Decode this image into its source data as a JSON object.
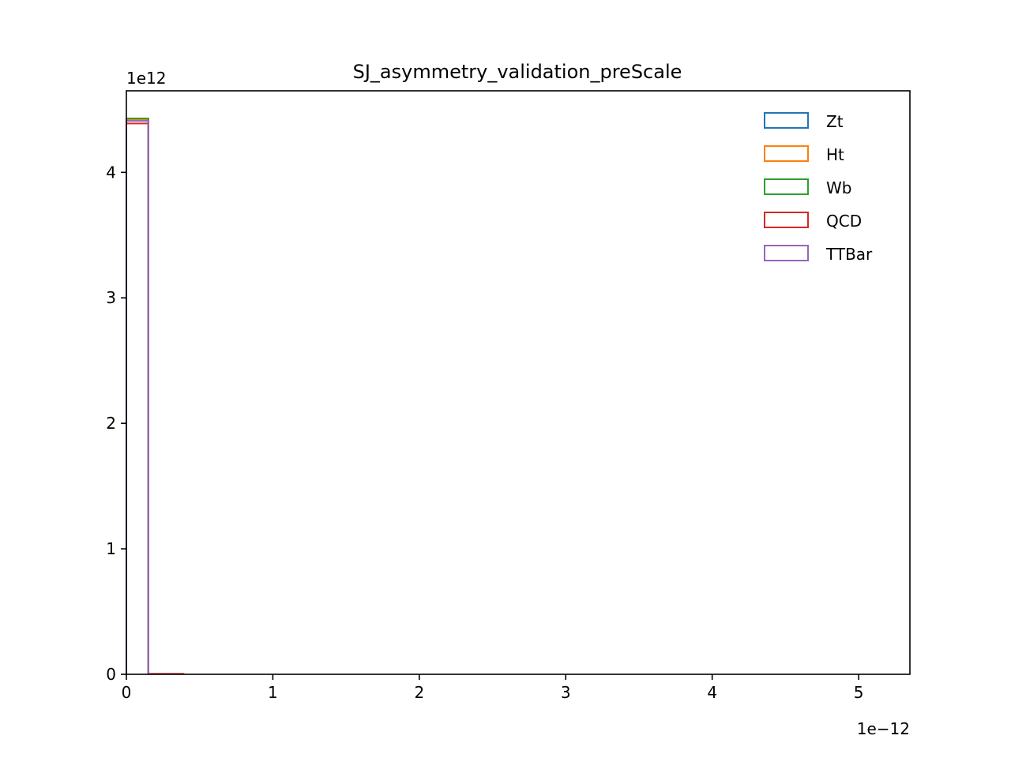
{
  "chart_data": {
    "type": "histogram",
    "title": "SJ_asymmetry_validation_preScale",
    "xlabel": "",
    "ylabel": "",
    "x_offset_text": "1e−12",
    "y_offset_text": "1e12",
    "x_scale_exponent": -12,
    "y_scale_exponent": 12,
    "xlim": [
      0,
      5.35e-12
    ],
    "ylim": [
      0,
      4650000000000.0
    ],
    "x_ticks": [
      0,
      1e-12,
      2e-12,
      3e-12,
      4e-12,
      5e-12
    ],
    "x_tick_labels": [
      "0",
      "1",
      "2",
      "3",
      "4",
      "5"
    ],
    "y_ticks": [
      0,
      1000000000000.0,
      2000000000000.0,
      3000000000000.0,
      4000000000000.0
    ],
    "y_tick_labels": [
      "0",
      "1",
      "2",
      "3",
      "4"
    ],
    "grid": false,
    "legend_position": "upper right",
    "histtype": "step",
    "series": [
      {
        "name": "Zt",
        "color": "#1f77b4",
        "bins": [
          [
            0,
            1.5e-13,
            4420000000000.0
          ]
        ]
      },
      {
        "name": "Ht",
        "color": "#ff7f0e",
        "bins": [
          [
            0,
            1.5e-13,
            4420000000000.0
          ]
        ]
      },
      {
        "name": "Wb",
        "color": "#2ca02c",
        "bins": [
          [
            0,
            1.5e-13,
            4430000000000.0
          ]
        ]
      },
      {
        "name": "QCD",
        "color": "#d62728",
        "bins": [
          [
            0,
            1.5e-13,
            4390000000000.0
          ],
          [
            1.5e-13,
            3.9e-13,
            4000000000.0
          ]
        ]
      },
      {
        "name": "TTBar",
        "color": "#9467bd",
        "bins": [
          [
            0,
            1.5e-13,
            4410000000000.0
          ]
        ]
      }
    ]
  }
}
